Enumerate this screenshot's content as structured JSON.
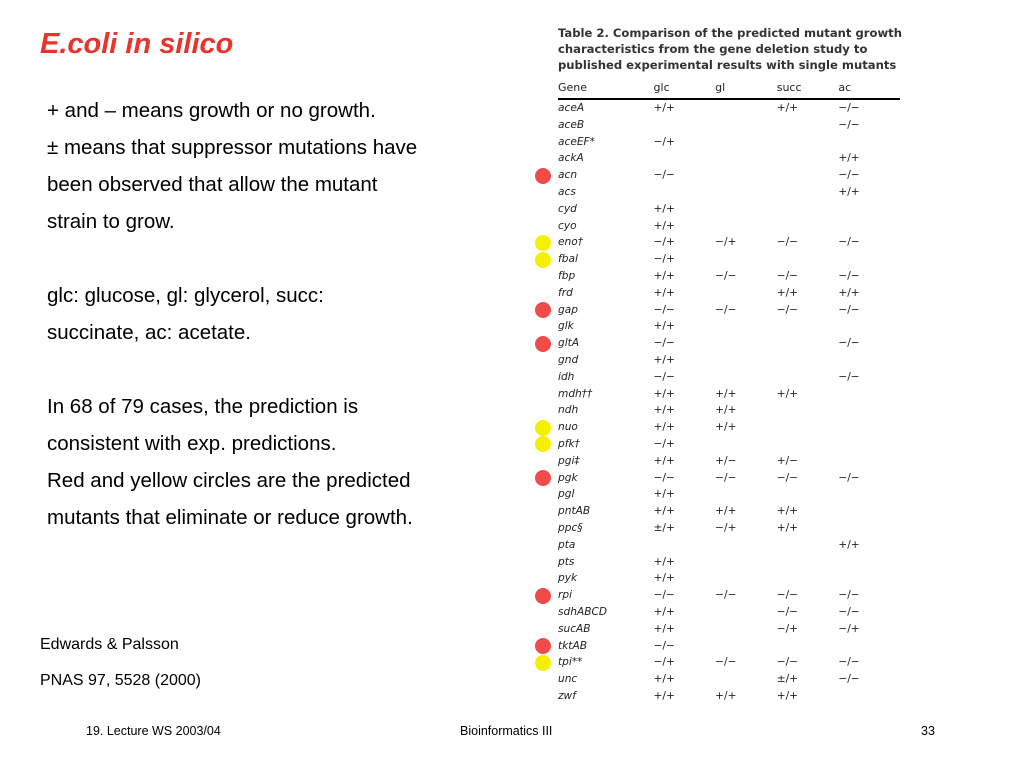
{
  "title": "E.coli in silico",
  "body": [
    "+ and – means growth or no growth.",
    "± means that suppressor mutations have",
    "been observed that allow the mutant",
    "strain to grow.",
    "",
    "glc: glucose,  gl: glycerol, succ:",
    "succinate, ac: acetate.",
    "",
    "In 68 of 79 cases, the prediction is",
    "consistent with exp. predictions.",
    "Red and yellow circles are the predicted",
    "mutants that eliminate or reduce growth."
  ],
  "reference": {
    "authors": "Edwards & Palsson",
    "citation": "PNAS 97, 5528 (2000)"
  },
  "footer": {
    "left": "19. Lecture WS 2003/04",
    "center": "Bioinformatics III",
    "page": "33"
  },
  "table": {
    "caption": "Table 2. Comparison of the predicted mutant growth characteristics from the gene deletion study to published experimental results with single mutants",
    "headers": [
      "Gene",
      "glc",
      "gl",
      "succ",
      "ac"
    ],
    "rows": [
      {
        "gene": "aceA",
        "glc": "+/+",
        "gl": "",
        "succ": "+/+",
        "ac": "−/−",
        "dot": ""
      },
      {
        "gene": "aceB",
        "glc": "",
        "gl": "",
        "succ": "",
        "ac": "−/−",
        "dot": ""
      },
      {
        "gene": "aceEF*",
        "glc": "−/+",
        "gl": "",
        "succ": "",
        "ac": "",
        "dot": ""
      },
      {
        "gene": "ackA",
        "glc": "",
        "gl": "",
        "succ": "",
        "ac": "+/+",
        "dot": ""
      },
      {
        "gene": "acn",
        "glc": "−/−",
        "gl": "",
        "succ": "",
        "ac": "−/−",
        "dot": "red"
      },
      {
        "gene": "acs",
        "glc": "",
        "gl": "",
        "succ": "",
        "ac": "+/+",
        "dot": ""
      },
      {
        "gene": "cyd",
        "glc": "+/+",
        "gl": "",
        "succ": "",
        "ac": "",
        "dot": ""
      },
      {
        "gene": "cyo",
        "glc": "+/+",
        "gl": "",
        "succ": "",
        "ac": "",
        "dot": ""
      },
      {
        "gene": "eno†",
        "glc": "−/+",
        "gl": "−/+",
        "succ": "−/−",
        "ac": "−/−",
        "dot": "yellow"
      },
      {
        "gene": "fbal",
        "glc": "−/+",
        "gl": "",
        "succ": "",
        "ac": "",
        "dot": "yellow"
      },
      {
        "gene": "fbp",
        "glc": "+/+",
        "gl": "−/−",
        "succ": "−/−",
        "ac": "−/−",
        "dot": ""
      },
      {
        "gene": "frd",
        "glc": "+/+",
        "gl": "",
        "succ": "+/+",
        "ac": "+/+",
        "dot": ""
      },
      {
        "gene": "gap",
        "glc": "−/−",
        "gl": "−/−",
        "succ": "−/−",
        "ac": "−/−",
        "dot": "red"
      },
      {
        "gene": "glk",
        "glc": "+/+",
        "gl": "",
        "succ": "",
        "ac": "",
        "dot": ""
      },
      {
        "gene": "gltA",
        "glc": "−/−",
        "gl": "",
        "succ": "",
        "ac": "−/−",
        "dot": "red"
      },
      {
        "gene": "gnd",
        "glc": "+/+",
        "gl": "",
        "succ": "",
        "ac": "",
        "dot": ""
      },
      {
        "gene": "idh",
        "glc": "−/−",
        "gl": "",
        "succ": "",
        "ac": "−/−",
        "dot": ""
      },
      {
        "gene": "mdh††",
        "glc": "+/+",
        "gl": "+/+",
        "succ": "+/+",
        "ac": "",
        "dot": ""
      },
      {
        "gene": "ndh",
        "glc": "+/+",
        "gl": "+/+",
        "succ": "",
        "ac": "",
        "dot": ""
      },
      {
        "gene": "nuo",
        "glc": "+/+",
        "gl": "+/+",
        "succ": "",
        "ac": "",
        "dot": "yellow"
      },
      {
        "gene": "pfk†",
        "glc": "−/+",
        "gl": "",
        "succ": "",
        "ac": "",
        "dot": "yellow"
      },
      {
        "gene": "pgi‡",
        "glc": "+/+",
        "gl": "+/−",
        "succ": "+/−",
        "ac": "",
        "dot": ""
      },
      {
        "gene": "pgk",
        "glc": "−/−",
        "gl": "−/−",
        "succ": "−/−",
        "ac": "−/−",
        "dot": "red"
      },
      {
        "gene": "pgl",
        "glc": "+/+",
        "gl": "",
        "succ": "",
        "ac": "",
        "dot": ""
      },
      {
        "gene": "pntAB",
        "glc": "+/+",
        "gl": "+/+",
        "succ": "+/+",
        "ac": "",
        "dot": ""
      },
      {
        "gene": "ppc§",
        "glc": "±/+",
        "gl": "−/+",
        "succ": "+/+",
        "ac": "",
        "dot": ""
      },
      {
        "gene": "pta",
        "glc": "",
        "gl": "",
        "succ": "",
        "ac": "+/+",
        "dot": ""
      },
      {
        "gene": "pts",
        "glc": "+/+",
        "gl": "",
        "succ": "",
        "ac": "",
        "dot": ""
      },
      {
        "gene": "pyk",
        "glc": "+/+",
        "gl": "",
        "succ": "",
        "ac": "",
        "dot": ""
      },
      {
        "gene": "rpi",
        "glc": "−/−",
        "gl": "−/−",
        "succ": "−/−",
        "ac": "−/−",
        "dot": "red"
      },
      {
        "gene": "sdhABCD",
        "glc": "+/+",
        "gl": "",
        "succ": "−/−",
        "ac": "−/−",
        "dot": ""
      },
      {
        "gene": "sucAB",
        "glc": "+/+",
        "gl": "",
        "succ": "−/+",
        "ac": "−/+",
        "dot": ""
      },
      {
        "gene": "tktAB",
        "glc": "−/−",
        "gl": "",
        "succ": "",
        "ac": "",
        "dot": "red"
      },
      {
        "gene": "tpi**",
        "glc": "−/+",
        "gl": "−/−",
        "succ": "−/−",
        "ac": "−/−",
        "dot": "yellow"
      },
      {
        "gene": "unc",
        "glc": "+/+",
        "gl": "",
        "succ": "±/+",
        "ac": "−/−",
        "dot": ""
      },
      {
        "gene": "zwf",
        "glc": "+/+",
        "gl": "+/+",
        "succ": "+/+",
        "ac": "",
        "dot": ""
      }
    ]
  },
  "colors": {
    "title": "#e8342c",
    "red_dot": "#f04a4a",
    "yellow_dot": "#f5f000"
  }
}
